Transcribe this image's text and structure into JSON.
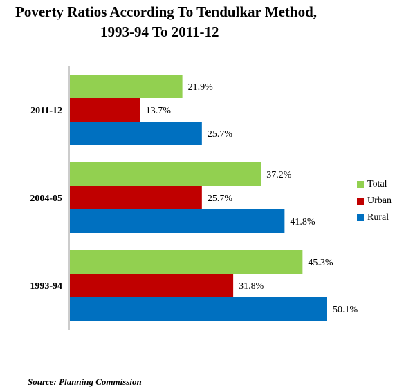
{
  "title_line1": "Poverty Ratios According To Tendulkar Method,",
  "title_line2": "1993-94 To 2011-12",
  "source": "Source: Planning Commission",
  "colors": {
    "Total": "#92d050",
    "Urban": "#c00000",
    "Rural": "#0070c0"
  },
  "chart_data": {
    "type": "bar",
    "orientation": "horizontal",
    "title": "Poverty Ratios According To Tendulkar Method, 1993-94 To 2011-12",
    "categories": [
      "2011-12",
      "2004-05",
      "1993-94"
    ],
    "series": [
      {
        "name": "Total",
        "values": [
          21.9,
          37.2,
          45.3
        ],
        "labels": [
          "21.9%",
          "37.2%",
          "45.3%"
        ]
      },
      {
        "name": "Urban",
        "values": [
          13.7,
          25.7,
          31.8
        ],
        "labels": [
          "13.7%",
          "25.7%",
          "31.8%"
        ]
      },
      {
        "name": "Rural",
        "values": [
          25.7,
          41.8,
          50.1
        ],
        "labels": [
          "25.7%",
          "41.8%",
          "50.1%"
        ]
      }
    ],
    "xlim": [
      0,
      55
    ],
    "grid": false,
    "legend": "right"
  }
}
